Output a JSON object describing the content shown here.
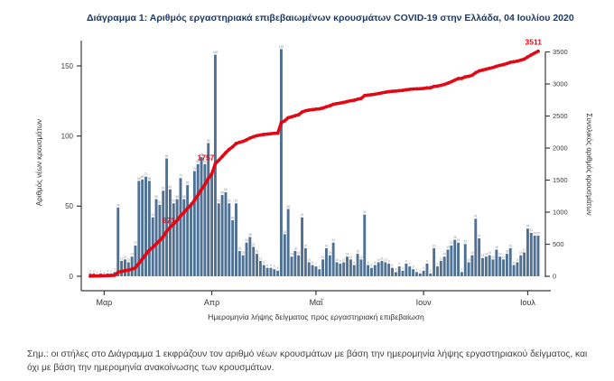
{
  "title": "Διάγραμμα 1: Αριθμός εργαστηριακά επιβεβαιωμένων κρουσμάτων COVID-19 στην Ελλάδα, 04 Ιουλίου 2020",
  "note": "Σημ.: οι στήλες στο Διάγραμμα 1 εκφράζουν τον αριθμό νέων κρουσμάτων με βάση την ημερομηνία λήψης εργαστηριακού δείγματος, και όχι με βάση την ημερομηνία ανακοίνωσης των κρουσμάτων.",
  "chart_data": {
    "type": "bar",
    "description": "Daily laboratory-confirmed COVID-19 cases in Greece by sampling date (bars, left axis) with cumulative total (red line, right axis), 26 Feb - 04 Jul 2020",
    "xlabel": "Ημερομηνία λήψης δείγματος προς εργαστηριακή επιβεβαίωση",
    "ylabel_left": "Αριθμός νέων κρουσμάτων",
    "ylabel_right": "Συνολικός αριθμός κρουσμάτων",
    "yticks_left": [
      0,
      50,
      100,
      150
    ],
    "yticks_right": [
      0,
      500,
      1000,
      1500,
      2000,
      2500,
      3000,
      3500
    ],
    "ylim_left": [
      0,
      150
    ],
    "ylim_right": [
      0,
      3500
    ],
    "months": [
      {
        "label": "Μαρ",
        "day_index": 4
      },
      {
        "label": "Απρ",
        "day_index": 35
      },
      {
        "label": "Μαΐ",
        "day_index": 65
      },
      {
        "label": "Ιουν",
        "day_index": 96
      },
      {
        "label": "Ιουλ",
        "day_index": 126
      }
    ],
    "daily_new_cases": [
      2,
      2,
      1,
      2,
      1,
      2,
      2,
      3,
      49,
      11,
      12,
      10,
      14,
      22,
      68,
      69,
      71,
      68,
      42,
      55,
      51,
      61,
      84,
      62,
      52,
      55,
      70,
      55,
      65,
      50,
      75,
      80,
      85,
      80,
      95,
      73,
      158,
      52,
      58,
      60,
      52,
      40,
      52,
      18,
      15,
      24,
      28,
      21,
      16,
      11,
      8,
      6,
      6,
      5,
      4,
      162,
      30,
      48,
      14,
      18,
      15,
      42,
      20,
      10,
      8,
      7,
      5,
      12,
      20,
      15,
      24,
      10,
      9,
      10,
      14,
      12,
      8,
      16,
      12,
      44,
      8,
      6,
      8,
      10,
      11,
      10,
      9,
      6,
      3,
      7,
      4,
      9,
      7,
      5,
      3,
      2,
      4,
      9,
      2,
      20,
      7,
      11,
      14,
      19,
      22,
      26,
      24,
      3,
      23,
      10,
      15,
      41,
      27,
      13,
      14,
      15,
      12,
      19,
      14,
      12,
      16,
      20,
      8,
      10,
      15,
      17,
      34,
      31,
      29,
      29
    ],
    "cumulative_total_final": 3511,
    "annotations": [
      {
        "label": "871",
        "day_index": 25,
        "placement": "left-of-point"
      },
      {
        "label": "1757",
        "day_index": 36,
        "placement": "above-left"
      },
      {
        "label": "3511",
        "day_index": 129,
        "placement": "above-end"
      }
    ],
    "legend_position": "none",
    "grid": false,
    "colors": {
      "bar": "#4e7093",
      "line": "#e30613",
      "annotation": "#e30613",
      "title": "#1e3a64",
      "axis": "#3a3a3a",
      "bar_label": "#8a8a8a"
    }
  }
}
